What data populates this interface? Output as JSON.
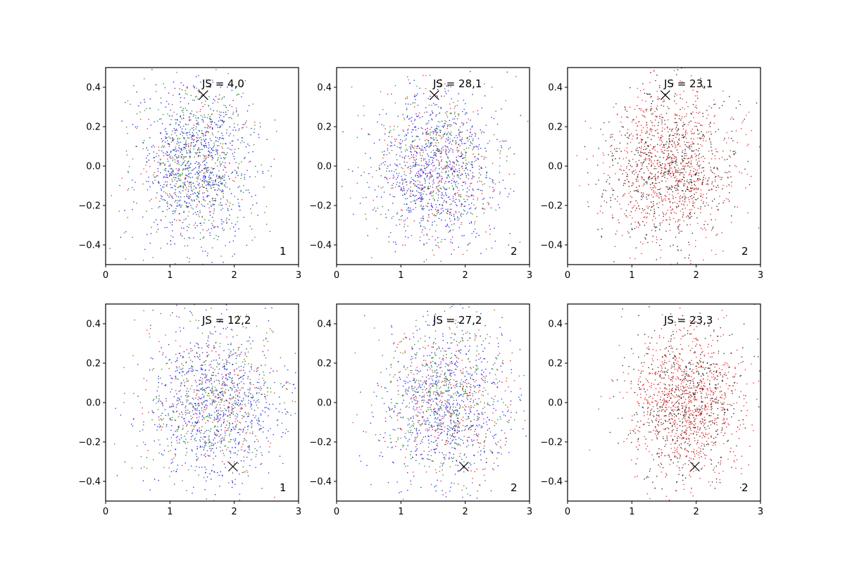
{
  "figure": {
    "layout": {
      "rows": 2,
      "cols": 3
    }
  },
  "chart_data": [
    {
      "type": "scatter",
      "panel": "top-left",
      "annotation": "JS = 4,0",
      "corner_label": "1",
      "marker": [
        1.52,
        0.36
      ],
      "center": [
        1.4,
        0.0
      ],
      "spread": [
        0.45,
        0.2
      ],
      "series_colors": [
        "#0000ff",
        "#008000",
        "#ff0000"
      ],
      "series_weights": [
        0.5,
        0.35,
        0.15
      ],
      "xlim": [
        0,
        3
      ],
      "ylim": [
        -0.5,
        0.5
      ],
      "xticks": [
        0,
        1,
        2,
        3
      ],
      "yticks": [
        -0.4,
        -0.2,
        0.0,
        0.2,
        0.4
      ],
      "xtick_labels": [
        "0",
        "1",
        "2",
        "3"
      ],
      "ytick_labels": [
        "−0.4",
        "−0.2",
        "0.0",
        "0.2",
        "0.4"
      ]
    },
    {
      "type": "scatter",
      "panel": "top-middle",
      "annotation": "JS = 28,1",
      "corner_label": "2",
      "marker": [
        1.52,
        0.36
      ],
      "center": [
        1.55,
        0.0
      ],
      "spread": [
        0.5,
        0.2
      ],
      "series_colors": [
        "#0000ff",
        "#008000",
        "#ff0000"
      ],
      "series_weights": [
        0.55,
        0.25,
        0.2
      ],
      "xlim": [
        0,
        3
      ],
      "ylim": [
        -0.5,
        0.5
      ],
      "xticks": [
        0,
        1,
        2,
        3
      ],
      "yticks": [
        -0.4,
        -0.2,
        0.0,
        0.2,
        0.4
      ],
      "xtick_labels": [
        "0",
        "1",
        "2",
        "3"
      ],
      "ytick_labels": [
        "−0.4",
        "−0.2",
        "0.0",
        "0.2",
        "0.4"
      ]
    },
    {
      "type": "scatter",
      "panel": "top-right",
      "annotation": "JS = 23,1",
      "corner_label": "2",
      "marker": [
        1.52,
        0.36
      ],
      "center": [
        1.6,
        0.0
      ],
      "spread": [
        0.5,
        0.2
      ],
      "series_colors": [
        "#000000",
        "#ff0000"
      ],
      "series_weights": [
        0.45,
        0.55
      ],
      "xlim": [
        0,
        3
      ],
      "ylim": [
        -0.5,
        0.5
      ],
      "xticks": [
        0,
        1,
        2,
        3
      ],
      "yticks": [
        -0.4,
        -0.2,
        0.0,
        0.2,
        0.4
      ],
      "xtick_labels": [
        "0",
        "1",
        "2",
        "3"
      ],
      "ytick_labels": [
        "−0.4",
        "−0.2",
        "0.0",
        "0.2",
        "0.4"
      ]
    },
    {
      "type": "scatter",
      "panel": "bottom-left",
      "annotation": "JS = 12,2",
      "corner_label": "1",
      "marker": [
        1.98,
        -0.325
      ],
      "center": [
        1.7,
        0.0
      ],
      "spread": [
        0.5,
        0.2
      ],
      "series_colors": [
        "#0000ff",
        "#008000",
        "#ff0000"
      ],
      "series_weights": [
        0.5,
        0.3,
        0.2
      ],
      "xlim": [
        0,
        3
      ],
      "ylim": [
        -0.5,
        0.5
      ],
      "xticks": [
        0,
        1,
        2,
        3
      ],
      "yticks": [
        -0.4,
        -0.2,
        0.0,
        0.2,
        0.4
      ],
      "xtick_labels": [
        "0",
        "1",
        "2",
        "3"
      ],
      "ytick_labels": [
        "−0.4",
        "−0.2",
        "0.0",
        "0.2",
        "0.4"
      ]
    },
    {
      "type": "scatter",
      "panel": "bottom-middle",
      "annotation": "JS = 27,2",
      "corner_label": "2",
      "marker": [
        1.98,
        -0.325
      ],
      "center": [
        1.7,
        0.0
      ],
      "spread": [
        0.5,
        0.2
      ],
      "series_colors": [
        "#0000ff",
        "#008000",
        "#ff0000"
      ],
      "series_weights": [
        0.45,
        0.3,
        0.25
      ],
      "xlim": [
        0,
        3
      ],
      "ylim": [
        -0.5,
        0.5
      ],
      "xticks": [
        0,
        1,
        2,
        3
      ],
      "yticks": [
        -0.4,
        -0.2,
        0.0,
        0.2,
        0.4
      ],
      "xtick_labels": [
        "0",
        "1",
        "2",
        "3"
      ],
      "ytick_labels": [
        "−0.4",
        "−0.2",
        "0.0",
        "0.2",
        "0.4"
      ]
    },
    {
      "type": "scatter",
      "panel": "bottom-right",
      "annotation": "JS = 23,3",
      "corner_label": "2",
      "marker": [
        1.98,
        -0.325
      ],
      "center": [
        1.85,
        0.0
      ],
      "spread": [
        0.45,
        0.2
      ],
      "series_colors": [
        "#000000",
        "#ff0000"
      ],
      "series_weights": [
        0.4,
        0.6
      ],
      "xlim": [
        0,
        3
      ],
      "ylim": [
        -0.5,
        0.5
      ],
      "xticks": [
        0,
        1,
        2,
        3
      ],
      "yticks": [
        -0.4,
        -0.2,
        0.0,
        0.2,
        0.4
      ],
      "xtick_labels": [
        "0",
        "1",
        "2",
        "3"
      ],
      "ytick_labels": [
        "−0.4",
        "−0.2",
        "0.0",
        "0.2",
        "0.4"
      ]
    }
  ]
}
